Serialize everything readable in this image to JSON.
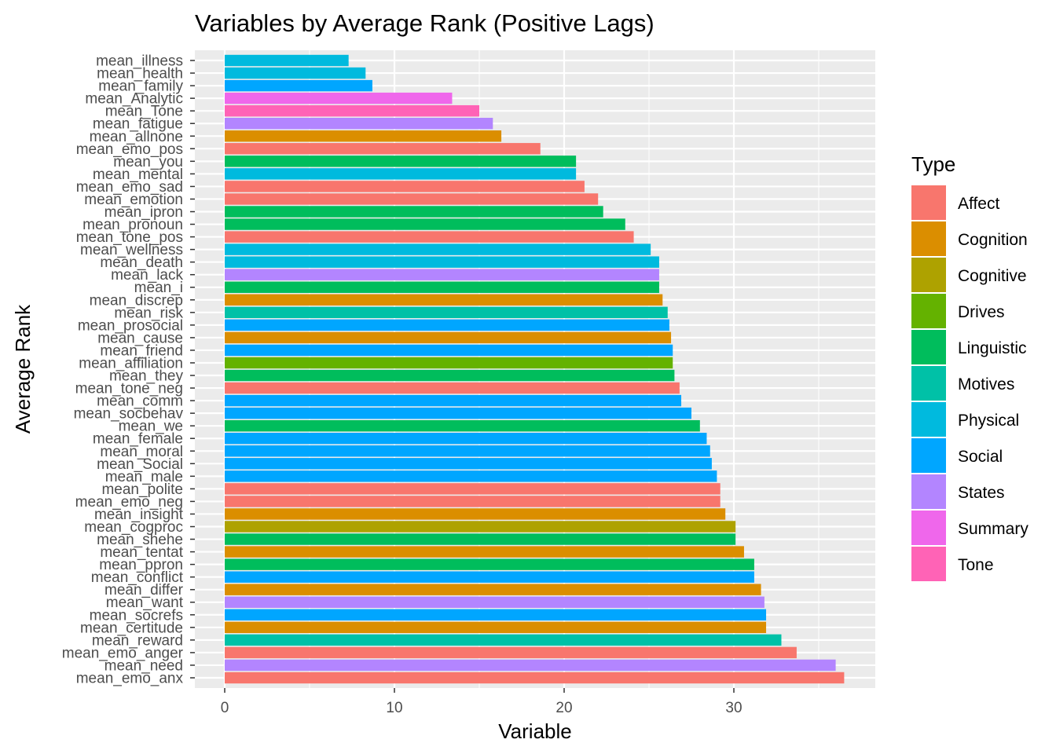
{
  "chart_data": {
    "type": "bar",
    "orientation": "horizontal",
    "title": "Variables by Average Rank (Positive Lags)",
    "xlabel": "Variable",
    "ylabel": "Average Rank",
    "xlim": [
      0,
      38.5
    ],
    "xticks": [
      0,
      10,
      20,
      30
    ],
    "grid": true,
    "legend_title": "Type",
    "legend_position": "right",
    "legend": [
      {
        "label": "Affect",
        "color": "#F8766D"
      },
      {
        "label": "Cognition",
        "color": "#DB8E00"
      },
      {
        "label": "Cognitive",
        "color": "#AEA200"
      },
      {
        "label": "Drives",
        "color": "#64B200"
      },
      {
        "label": "Linguistic",
        "color": "#00BD5C"
      },
      {
        "label": "Motives",
        "color": "#00C1A7"
      },
      {
        "label": "Physical",
        "color": "#00BADE"
      },
      {
        "label": "Social",
        "color": "#00A6FF"
      },
      {
        "label": "States",
        "color": "#B385FF"
      },
      {
        "label": "Summary",
        "color": "#EF67EB"
      },
      {
        "label": "Tone",
        "color": "#FF63B6"
      }
    ],
    "bars": [
      {
        "label": "mean_illness",
        "value": 7.3,
        "type": "Physical"
      },
      {
        "label": "mean_health",
        "value": 8.3,
        "type": "Physical"
      },
      {
        "label": "mean_family",
        "value": 8.7,
        "type": "Social"
      },
      {
        "label": "mean_Analytic",
        "value": 13.4,
        "type": "Summary"
      },
      {
        "label": "mean_Tone",
        "value": 15.0,
        "type": "Tone"
      },
      {
        "label": "mean_fatigue",
        "value": 15.8,
        "type": "States"
      },
      {
        "label": "mean_allnone",
        "value": 16.3,
        "type": "Cognition"
      },
      {
        "label": "mean_emo_pos",
        "value": 18.6,
        "type": "Affect"
      },
      {
        "label": "mean_you",
        "value": 20.7,
        "type": "Linguistic"
      },
      {
        "label": "mean_mental",
        "value": 20.7,
        "type": "Physical"
      },
      {
        "label": "mean_emo_sad",
        "value": 21.2,
        "type": "Affect"
      },
      {
        "label": "mean_emotion",
        "value": 22.0,
        "type": "Affect"
      },
      {
        "label": "mean_ipron",
        "value": 22.3,
        "type": "Linguistic"
      },
      {
        "label": "mean_pronoun",
        "value": 23.6,
        "type": "Linguistic"
      },
      {
        "label": "mean_tone_pos",
        "value": 24.1,
        "type": "Affect"
      },
      {
        "label": "mean_wellness",
        "value": 25.1,
        "type": "Physical"
      },
      {
        "label": "mean_death",
        "value": 25.6,
        "type": "Physical"
      },
      {
        "label": "mean_lack",
        "value": 25.6,
        "type": "States"
      },
      {
        "label": "mean_i",
        "value": 25.6,
        "type": "Linguistic"
      },
      {
        "label": "mean_discrep",
        "value": 25.8,
        "type": "Cognition"
      },
      {
        "label": "mean_risk",
        "value": 26.1,
        "type": "Motives"
      },
      {
        "label": "mean_prosocial",
        "value": 26.2,
        "type": "Social"
      },
      {
        "label": "mean_cause",
        "value": 26.3,
        "type": "Cognition"
      },
      {
        "label": "mean_friend",
        "value": 26.4,
        "type": "Social"
      },
      {
        "label": "mean_affiliation",
        "value": 26.4,
        "type": "Drives"
      },
      {
        "label": "mean_they",
        "value": 26.5,
        "type": "Linguistic"
      },
      {
        "label": "mean_tone_neg",
        "value": 26.8,
        "type": "Affect"
      },
      {
        "label": "mean_comm",
        "value": 26.9,
        "type": "Social"
      },
      {
        "label": "mean_socbehav",
        "value": 27.5,
        "type": "Social"
      },
      {
        "label": "mean_we",
        "value": 28.0,
        "type": "Linguistic"
      },
      {
        "label": "mean_female",
        "value": 28.4,
        "type": "Social"
      },
      {
        "label": "mean_moral",
        "value": 28.6,
        "type": "Social"
      },
      {
        "label": "mean_Social",
        "value": 28.7,
        "type": "Social"
      },
      {
        "label": "mean_male",
        "value": 29.0,
        "type": "Social"
      },
      {
        "label": "mean_polite",
        "value": 29.2,
        "type": "Affect"
      },
      {
        "label": "mean_emo_neg",
        "value": 29.2,
        "type": "Affect"
      },
      {
        "label": "mean_insight",
        "value": 29.5,
        "type": "Cognition"
      },
      {
        "label": "mean_cogproc",
        "value": 30.1,
        "type": "Cognitive"
      },
      {
        "label": "mean_shehe",
        "value": 30.1,
        "type": "Linguistic"
      },
      {
        "label": "mean_tentat",
        "value": 30.6,
        "type": "Cognition"
      },
      {
        "label": "mean_ppron",
        "value": 31.2,
        "type": "Linguistic"
      },
      {
        "label": "mean_conflict",
        "value": 31.2,
        "type": "Social"
      },
      {
        "label": "mean_differ",
        "value": 31.6,
        "type": "Cognition"
      },
      {
        "label": "mean_want",
        "value": 31.8,
        "type": "States"
      },
      {
        "label": "mean_socrefs",
        "value": 31.9,
        "type": "Social"
      },
      {
        "label": "mean_certitude",
        "value": 31.9,
        "type": "Cognition"
      },
      {
        "label": "mean_reward",
        "value": 32.8,
        "type": "Motives"
      },
      {
        "label": "mean_emo_anger",
        "value": 33.7,
        "type": "Affect"
      },
      {
        "label": "mean_need",
        "value": 36.0,
        "type": "States"
      },
      {
        "label": "mean_emo_anx",
        "value": 36.5,
        "type": "Affect"
      }
    ]
  }
}
